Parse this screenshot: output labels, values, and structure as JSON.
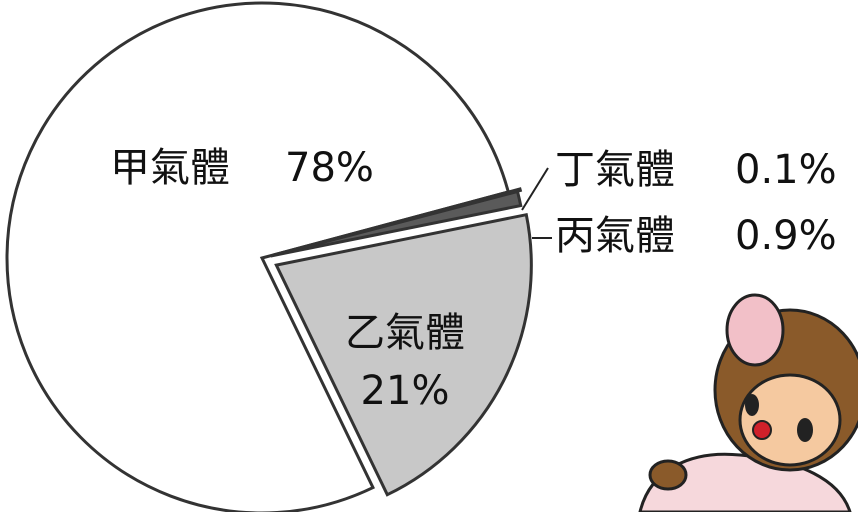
{
  "chart_data": {
    "type": "pie",
    "categories": [
      "甲氣體",
      "乙氣體",
      "丙氣體",
      "丁氣體"
    ],
    "values": [
      78,
      21,
      0.9,
      0.1
    ],
    "value_labels": [
      "78%",
      "21%",
      "0.9%",
      "0.1%"
    ],
    "colors": [
      "#ffffff",
      "#c8c8c8",
      "#5a5a5a",
      "#ffffff"
    ]
  }
}
